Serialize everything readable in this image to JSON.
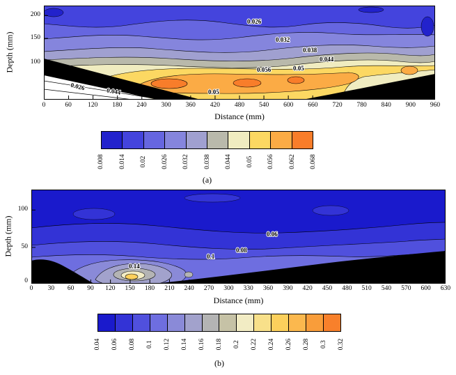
{
  "page": {
    "background": "#ffffff"
  },
  "chart_data": [
    {
      "type": "contour",
      "sublabel": "(a)",
      "xlabel": "Distance (mm)",
      "ylabel": "Depth (mm)",
      "xlim": [
        0,
        960
      ],
      "x_tick_interval": 60,
      "x_ticks": [
        "0",
        "60",
        "120",
        "180",
        "240",
        "300",
        "360",
        "420",
        "480",
        "540",
        "600",
        "660",
        "720",
        "780",
        "840",
        "900",
        "960"
      ],
      "y_ticks": [
        "200",
        "150",
        "100"
      ],
      "levels": [
        0.008,
        0.014,
        0.02,
        0.026,
        0.032,
        0.038,
        0.044,
        0.05,
        0.056,
        0.062,
        0.068
      ],
      "colorbar_labels": [
        "0.008",
        "0.014",
        "0.02",
        "0.026",
        "0.032",
        "0.038",
        "0.044",
        "0.05",
        "0.056",
        "0.062",
        "0.068"
      ],
      "colors": [
        "#2222cc",
        "#4444dd",
        "#6666e0",
        "#8585dd",
        "#a0a0d0",
        "#b9b9ab",
        "#f0ecc0",
        "#fcd862",
        "#fbab45",
        "#f87d2a"
      ],
      "mask_color": "#000000",
      "no_data_color": "#ffffff",
      "annotations": [
        "0.026",
        "0.032",
        "0.038",
        "0.044",
        "0.05",
        "0.056",
        "0.026",
        "0.044",
        "0.05"
      ],
      "grid": false,
      "legend_position": "bottom"
    },
    {
      "type": "contour",
      "sublabel": "(b)",
      "xlabel": "Distance (mm)",
      "ylabel": "Depth (mm)",
      "xlim": [
        0,
        630
      ],
      "x_tick_interval": 30,
      "x_ticks": [
        "0",
        "30",
        "60",
        "90",
        "120",
        "150",
        "180",
        "210",
        "240",
        "270",
        "300",
        "330",
        "360",
        "390",
        "420",
        "450",
        "480",
        "510",
        "540",
        "570",
        "600",
        "630"
      ],
      "y_ticks": [
        "100",
        "50",
        "0"
      ],
      "levels": [
        0.04,
        0.06,
        0.08,
        0.1,
        0.12,
        0.14,
        0.16,
        0.18,
        0.2,
        0.22,
        0.24,
        0.26,
        0.28,
        0.3,
        0.32
      ],
      "colorbar_labels": [
        "0.04",
        "0.06",
        "0.08",
        "0.1",
        "0.12",
        "0.14",
        "0.16",
        "0.18",
        "0.2",
        "0.22",
        "0.24",
        "0.26",
        "0.28",
        "0.3",
        "0.32"
      ],
      "colors": [
        "#1a1acc",
        "#3333d6",
        "#5050dd",
        "#6e6ee0",
        "#8a8ad8",
        "#a2a2cc",
        "#b4b4b4",
        "#c6c2a6",
        "#f2ecc4",
        "#f8e08a",
        "#fcd05c",
        "#fbb84e",
        "#f99d3a",
        "#f8802b"
      ],
      "mask_color": "#000000",
      "annotations": [
        "0.06",
        "0.08",
        "0.1",
        "0.14"
      ],
      "grid": false,
      "legend_position": "bottom"
    }
  ]
}
